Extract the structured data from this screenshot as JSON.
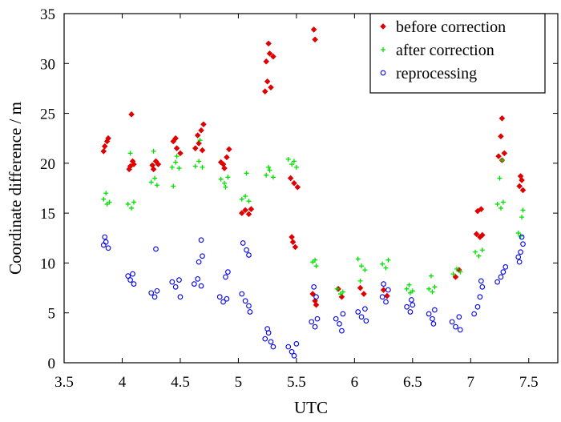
{
  "chart_data": {
    "type": "scatter",
    "title": "",
    "xlabel": "UTC",
    "ylabel": "Coordinate difference / m",
    "xlim": [
      3.5,
      7.75
    ],
    "ylim": [
      0,
      35
    ],
    "x_ticks": [
      "3.5",
      "4",
      "4.5",
      "5",
      "5.5",
      "6",
      "6.5",
      "7",
      "7.5"
    ],
    "x_tick_values": [
      3.5,
      4,
      4.5,
      5,
      5.5,
      6,
      6.5,
      7,
      7.5
    ],
    "y_ticks": [
      "0",
      "5",
      "10",
      "15",
      "20",
      "25",
      "30",
      "35"
    ],
    "y_tick_values": [
      0,
      5,
      10,
      15,
      20,
      25,
      30,
      35
    ],
    "legend_position": "top-right",
    "series": [
      {
        "name": "before correction",
        "marker": "diamond",
        "color": "#e00000",
        "points": [
          [
            3.85,
            21.7
          ],
          [
            3.87,
            22.2
          ],
          [
            3.84,
            21.2
          ],
          [
            3.88,
            22.5
          ],
          [
            4.07,
            19.7
          ],
          [
            4.09,
            20.2
          ],
          [
            4.06,
            19.4
          ],
          [
            4.1,
            19.9
          ],
          [
            4.08,
            24.9
          ],
          [
            4.26,
            19.8
          ],
          [
            4.29,
            20.2
          ],
          [
            4.27,
            19.4
          ],
          [
            4.31,
            19.9
          ],
          [
            4.44,
            22.2
          ],
          [
            4.47,
            21.5
          ],
          [
            4.5,
            21.0
          ],
          [
            4.46,
            22.5
          ],
          [
            4.63,
            21.5
          ],
          [
            4.66,
            22.0
          ],
          [
            4.69,
            21.3
          ],
          [
            4.68,
            23.3
          ],
          [
            4.7,
            23.9
          ],
          [
            4.65,
            22.8
          ],
          [
            4.85,
            20.1
          ],
          [
            4.88,
            19.5
          ],
          [
            4.9,
            20.6
          ],
          [
            4.92,
            21.4
          ],
          [
            4.87,
            19.9
          ],
          [
            5.03,
            15.0
          ],
          [
            5.06,
            15.3
          ],
          [
            5.09,
            14.9
          ],
          [
            5.11,
            15.4
          ],
          [
            5.24,
            30.2
          ],
          [
            5.27,
            31.0
          ],
          [
            5.3,
            30.7
          ],
          [
            5.26,
            32.0
          ],
          [
            5.25,
            28.2
          ],
          [
            5.28,
            27.6
          ],
          [
            5.23,
            27.2
          ],
          [
            5.45,
            18.5
          ],
          [
            5.48,
            18.0
          ],
          [
            5.51,
            17.6
          ],
          [
            5.47,
            12.1
          ],
          [
            5.49,
            11.6
          ],
          [
            5.46,
            12.6
          ],
          [
            5.64,
            6.9
          ],
          [
            5.66,
            6.2
          ],
          [
            5.67,
            5.8
          ],
          [
            5.65,
            33.4
          ],
          [
            5.66,
            32.4
          ],
          [
            5.86,
            7.4
          ],
          [
            5.89,
            6.6
          ],
          [
            6.05,
            7.5
          ],
          [
            6.08,
            6.9
          ],
          [
            6.25,
            7.3
          ],
          [
            6.28,
            6.7
          ],
          [
            6.87,
            8.6
          ],
          [
            6.9,
            9.3
          ],
          [
            7.05,
            12.9
          ],
          [
            7.08,
            12.6
          ],
          [
            7.1,
            12.8
          ],
          [
            7.09,
            15.4
          ],
          [
            7.06,
            15.2
          ],
          [
            7.24,
            20.7
          ],
          [
            7.27,
            20.3
          ],
          [
            7.29,
            21.0
          ],
          [
            7.26,
            22.7
          ],
          [
            7.27,
            24.5
          ],
          [
            7.42,
            17.7
          ],
          [
            7.44,
            18.3
          ],
          [
            7.45,
            17.3
          ],
          [
            7.43,
            18.7
          ]
        ]
      },
      {
        "name": "after correction",
        "marker": "plus",
        "color": "#00e000",
        "points": [
          [
            3.84,
            16.4
          ],
          [
            3.87,
            15.9
          ],
          [
            3.86,
            17.0
          ],
          [
            3.89,
            16.1
          ],
          [
            4.05,
            15.9
          ],
          [
            4.08,
            15.5
          ],
          [
            4.1,
            16.1
          ],
          [
            4.07,
            21.0
          ],
          [
            4.25,
            18.1
          ],
          [
            4.28,
            18.5
          ],
          [
            4.3,
            17.8
          ],
          [
            4.27,
            21.2
          ],
          [
            4.43,
            19.6
          ],
          [
            4.46,
            20.1
          ],
          [
            4.49,
            19.5
          ],
          [
            4.44,
            17.7
          ],
          [
            4.47,
            20.7
          ],
          [
            4.63,
            19.7
          ],
          [
            4.66,
            20.2
          ],
          [
            4.69,
            19.6
          ],
          [
            4.67,
            22.3
          ],
          [
            4.85,
            18.4
          ],
          [
            4.88,
            18.0
          ],
          [
            4.91,
            18.6
          ],
          [
            4.89,
            17.6
          ],
          [
            5.03,
            16.4
          ],
          [
            5.06,
            16.7
          ],
          [
            5.09,
            16.2
          ],
          [
            5.07,
            19.0
          ],
          [
            5.24,
            18.8
          ],
          [
            5.27,
            19.3
          ],
          [
            5.3,
            18.6
          ],
          [
            5.26,
            19.6
          ],
          [
            5.43,
            20.4
          ],
          [
            5.46,
            19.9
          ],
          [
            5.48,
            20.2
          ],
          [
            5.5,
            19.6
          ],
          [
            5.64,
            10.1
          ],
          [
            5.67,
            9.7
          ],
          [
            5.66,
            10.3
          ],
          [
            5.85,
            7.4
          ],
          [
            5.88,
            6.9
          ],
          [
            5.9,
            7.1
          ],
          [
            6.03,
            10.4
          ],
          [
            6.06,
            9.7
          ],
          [
            6.09,
            9.3
          ],
          [
            6.05,
            8.2
          ],
          [
            6.24,
            9.9
          ],
          [
            6.27,
            9.5
          ],
          [
            6.29,
            10.3
          ],
          [
            6.45,
            7.4
          ],
          [
            6.48,
            7.0
          ],
          [
            6.5,
            7.2
          ],
          [
            6.47,
            7.8
          ],
          [
            6.64,
            7.4
          ],
          [
            6.67,
            7.1
          ],
          [
            6.69,
            7.6
          ],
          [
            6.66,
            8.7
          ],
          [
            6.85,
            8.9
          ],
          [
            6.88,
            9.4
          ],
          [
            6.91,
            9.1
          ],
          [
            7.04,
            11.1
          ],
          [
            7.07,
            10.7
          ],
          [
            7.1,
            11.3
          ],
          [
            7.23,
            15.9
          ],
          [
            7.26,
            15.5
          ],
          [
            7.28,
            16.1
          ],
          [
            7.25,
            18.5
          ],
          [
            7.27,
            20.3
          ],
          [
            7.41,
            13.0
          ],
          [
            7.43,
            12.7
          ],
          [
            7.45,
            15.3
          ],
          [
            7.44,
            14.6
          ]
        ]
      },
      {
        "name": "reprocessing",
        "marker": "circle",
        "color": "#0000ee",
        "points": [
          [
            3.84,
            11.8
          ],
          [
            3.86,
            12.1
          ],
          [
            3.88,
            11.5
          ],
          [
            3.85,
            12.6
          ],
          [
            4.05,
            8.7
          ],
          [
            4.07,
            8.3
          ],
          [
            4.09,
            8.9
          ],
          [
            4.1,
            7.9
          ],
          [
            4.25,
            7.0
          ],
          [
            4.28,
            6.6
          ],
          [
            4.3,
            7.2
          ],
          [
            4.29,
            11.4
          ],
          [
            4.43,
            8.1
          ],
          [
            4.46,
            7.6
          ],
          [
            4.49,
            8.3
          ],
          [
            4.5,
            6.6
          ],
          [
            4.62,
            7.9
          ],
          [
            4.65,
            8.4
          ],
          [
            4.68,
            7.7
          ],
          [
            4.66,
            10.1
          ],
          [
            4.69,
            10.7
          ],
          [
            4.68,
            12.3
          ],
          [
            4.84,
            6.6
          ],
          [
            4.87,
            6.1
          ],
          [
            4.9,
            6.4
          ],
          [
            4.89,
            8.6
          ],
          [
            4.91,
            9.1
          ],
          [
            5.03,
            6.9
          ],
          [
            5.06,
            6.2
          ],
          [
            5.09,
            5.7
          ],
          [
            5.1,
            5.1
          ],
          [
            5.04,
            12.0
          ],
          [
            5.07,
            11.3
          ],
          [
            5.09,
            10.8
          ],
          [
            5.23,
            2.4
          ],
          [
            5.26,
            3.0
          ],
          [
            5.28,
            2.1
          ],
          [
            5.3,
            1.6
          ],
          [
            5.25,
            3.4
          ],
          [
            5.43,
            1.6
          ],
          [
            5.46,
            1.1
          ],
          [
            5.48,
            0.7
          ],
          [
            5.5,
            1.9
          ],
          [
            5.63,
            4.1
          ],
          [
            5.66,
            3.6
          ],
          [
            5.68,
            4.4
          ],
          [
            5.65,
            7.6
          ],
          [
            5.67,
            6.6
          ],
          [
            5.84,
            4.4
          ],
          [
            5.87,
            3.9
          ],
          [
            5.89,
            3.2
          ],
          [
            5.9,
            4.9
          ],
          [
            6.03,
            5.1
          ],
          [
            6.06,
            4.6
          ],
          [
            6.09,
            5.4
          ],
          [
            6.1,
            4.2
          ],
          [
            6.24,
            6.6
          ],
          [
            6.27,
            6.1
          ],
          [
            6.29,
            7.3
          ],
          [
            6.25,
            7.9
          ],
          [
            6.45,
            5.6
          ],
          [
            6.48,
            5.1
          ],
          [
            6.5,
            5.8
          ],
          [
            6.49,
            6.3
          ],
          [
            6.64,
            4.9
          ],
          [
            6.67,
            4.4
          ],
          [
            6.69,
            5.3
          ],
          [
            6.68,
            3.9
          ],
          [
            6.84,
            4.1
          ],
          [
            6.87,
            3.6
          ],
          [
            6.9,
            4.6
          ],
          [
            6.91,
            3.3
          ],
          [
            7.03,
            4.9
          ],
          [
            7.06,
            5.6
          ],
          [
            7.08,
            6.6
          ],
          [
            7.1,
            7.6
          ],
          [
            7.09,
            8.2
          ],
          [
            7.23,
            8.1
          ],
          [
            7.26,
            8.6
          ],
          [
            7.28,
            9.1
          ],
          [
            7.3,
            9.6
          ],
          [
            7.41,
            10.6
          ],
          [
            7.43,
            11.1
          ],
          [
            7.45,
            11.9
          ],
          [
            7.44,
            12.6
          ],
          [
            7.42,
            10.1
          ]
        ]
      }
    ]
  }
}
